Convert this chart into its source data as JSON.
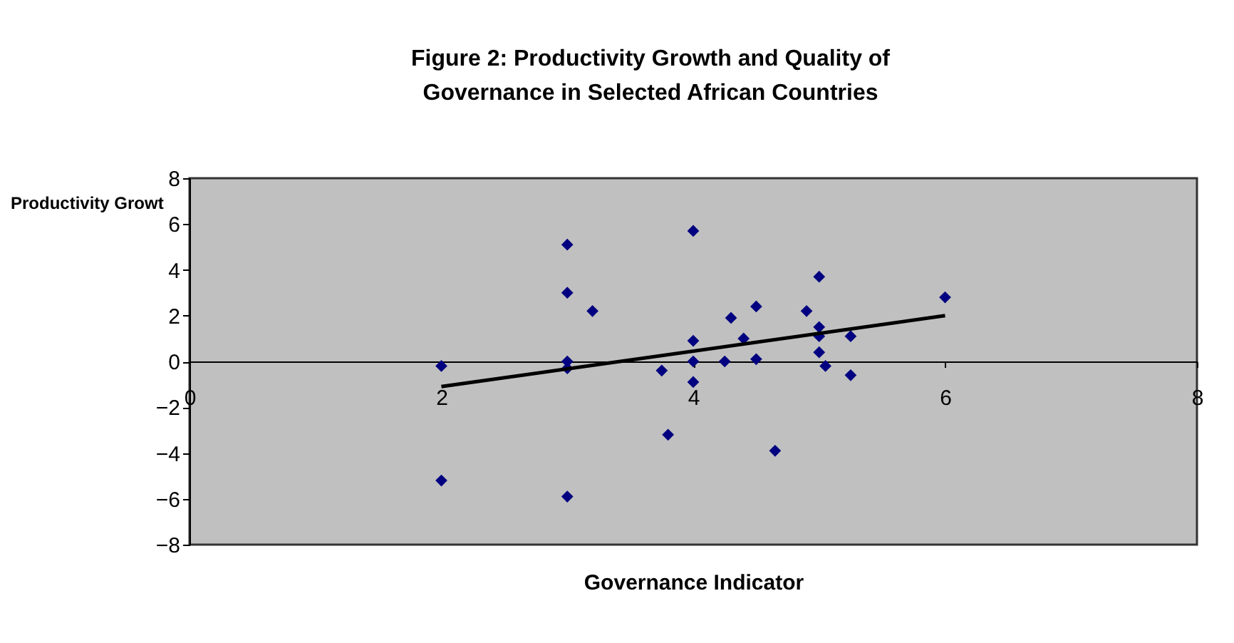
{
  "chart_data": {
    "type": "scatter",
    "title": "Figure 2: Productivity Growth and Quality of\nGovernance in Selected African Countries",
    "xlabel": "Governance Indicator",
    "ylabel": "Productivity Growt",
    "series": [
      {
        "type": "scatter",
        "marker": "diamond",
        "color": "#000080",
        "x": [
          2,
          2,
          3,
          3,
          3.2,
          3,
          3,
          3,
          4,
          3.75,
          4,
          4,
          4,
          3.8,
          4.3,
          4.5,
          4.25,
          4.4,
          4.5,
          4.65,
          5,
          4.9,
          5,
          5,
          5.25,
          5,
          5.05,
          5.25,
          6
        ],
        "values": [
          -0.2,
          -5.2,
          5.1,
          3,
          2.2,
          0,
          -0.3,
          -5.9,
          5.7,
          -0.4,
          0.9,
          0,
          -0.9,
          -3.2,
          1.9,
          2.4,
          0,
          1,
          0.1,
          -3.9,
          3.7,
          2.2,
          1.5,
          1.1,
          1.1,
          0.4,
          -0.2,
          -0.6,
          2.8
        ]
      },
      {
        "type": "line",
        "marker": "none",
        "color": "#000000",
        "x": [
          2,
          6
        ],
        "values": [
          -1.1,
          2
        ]
      }
    ],
    "xlim": [
      0,
      8
    ],
    "xticks": [
      0,
      2,
      4,
      6,
      8
    ],
    "ylim": [
      -8,
      8
    ],
    "yticks": [
      -8,
      -6,
      -4,
      -2,
      0,
      2,
      4,
      6,
      8
    ],
    "grid": false
  }
}
